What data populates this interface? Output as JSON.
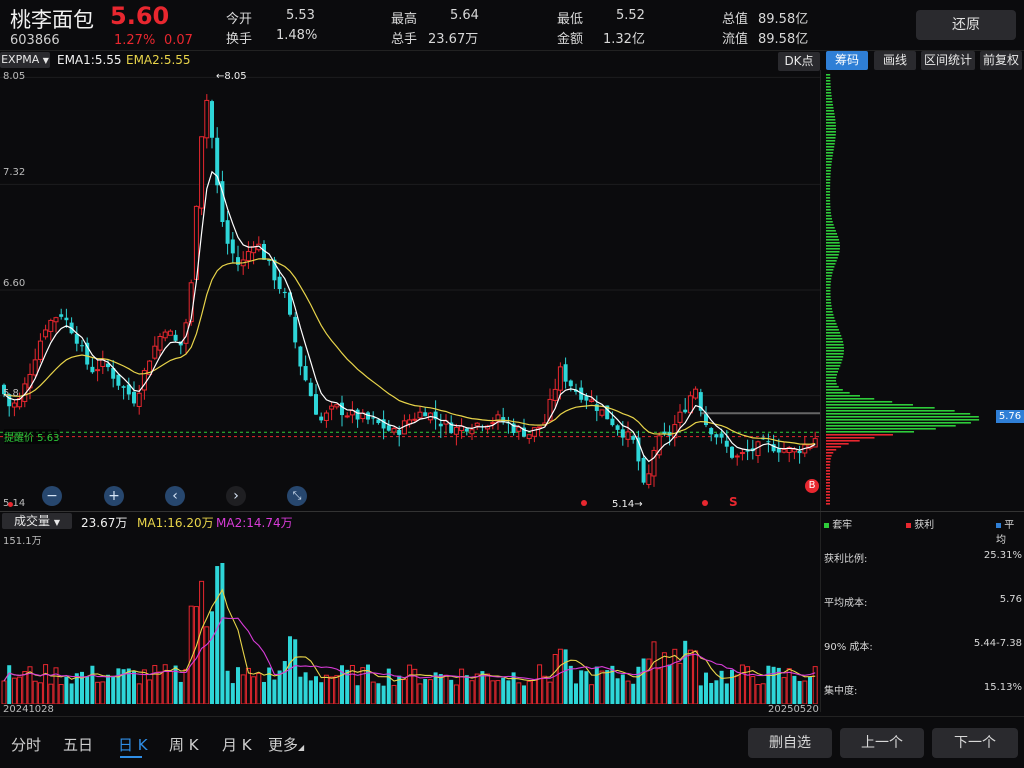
{
  "stock": {
    "name": "桃李面包",
    "price": "5.60",
    "code": "603866",
    "change_pct": "1.27%",
    "change_amt": "0.07"
  },
  "stats": {
    "open_label": "今开",
    "open": "5.53",
    "turnover_label": "换手",
    "turnover": "1.48%",
    "high_label": "最高",
    "high": "5.64",
    "vol_label": "总手",
    "vol": "23.67万",
    "low_label": "最低",
    "low": "5.52",
    "amount_label": "金额",
    "amount": "1.32亿",
    "mcap_label": "总值",
    "mcap": "89.58亿",
    "float_label": "流值",
    "float": "89.58亿"
  },
  "restore_btn": "还原",
  "indicator": {
    "name": "EXPMA",
    "ema1": "EMA1:5.55",
    "ema2": "EMA2:5.55"
  },
  "toolbar": {
    "dk": "DK点",
    "chips": "筹码",
    "draw": "画线",
    "range": "区间统计",
    "adjust": "前复权"
  },
  "price_axis": [
    "8.05",
    "7.32",
    "6.60",
    "5.8",
    "5.14"
  ],
  "annotations": {
    "high_label": "←8.05",
    "low_label": "5.14→",
    "watch_price": "提醒价 5.63",
    "chip_price": "5.76",
    "sell_mark": "S",
    "buy_mark": "B"
  },
  "volume": {
    "name": "成交量",
    "value": "23.67万",
    "ma1": "MA1:16.20万",
    "ma2": "MA2:14.74万",
    "max": "151.1万"
  },
  "dates": {
    "start": "20241028",
    "end": "20250520"
  },
  "chip_stats": {
    "legend_trapped": "套牢",
    "legend_profit": "获利",
    "legend_avg": "平均",
    "profit_ratio_label": "获利比例:",
    "profit_ratio": "25.31%",
    "avg_cost_label": "平均成本:",
    "avg_cost": "5.76",
    "cost90_label": "90% 成本:",
    "cost90": "5.44-7.38",
    "concentration_label": "集中度:",
    "concentration": "15.13%"
  },
  "nav": {
    "tabs": [
      "分时",
      "五日",
      "日 K",
      "周 K",
      "月 K",
      "更多"
    ],
    "active": "日 K",
    "remove": "删自选",
    "prev": "上一个",
    "next": "下一个"
  },
  "colors": {
    "up": "#e8272f",
    "down": "#2ed6d8",
    "ema1": "#ffffff",
    "ema2": "#e8d44a",
    "ma2": "#d63bd6",
    "accent": "#2f7fd6"
  }
}
